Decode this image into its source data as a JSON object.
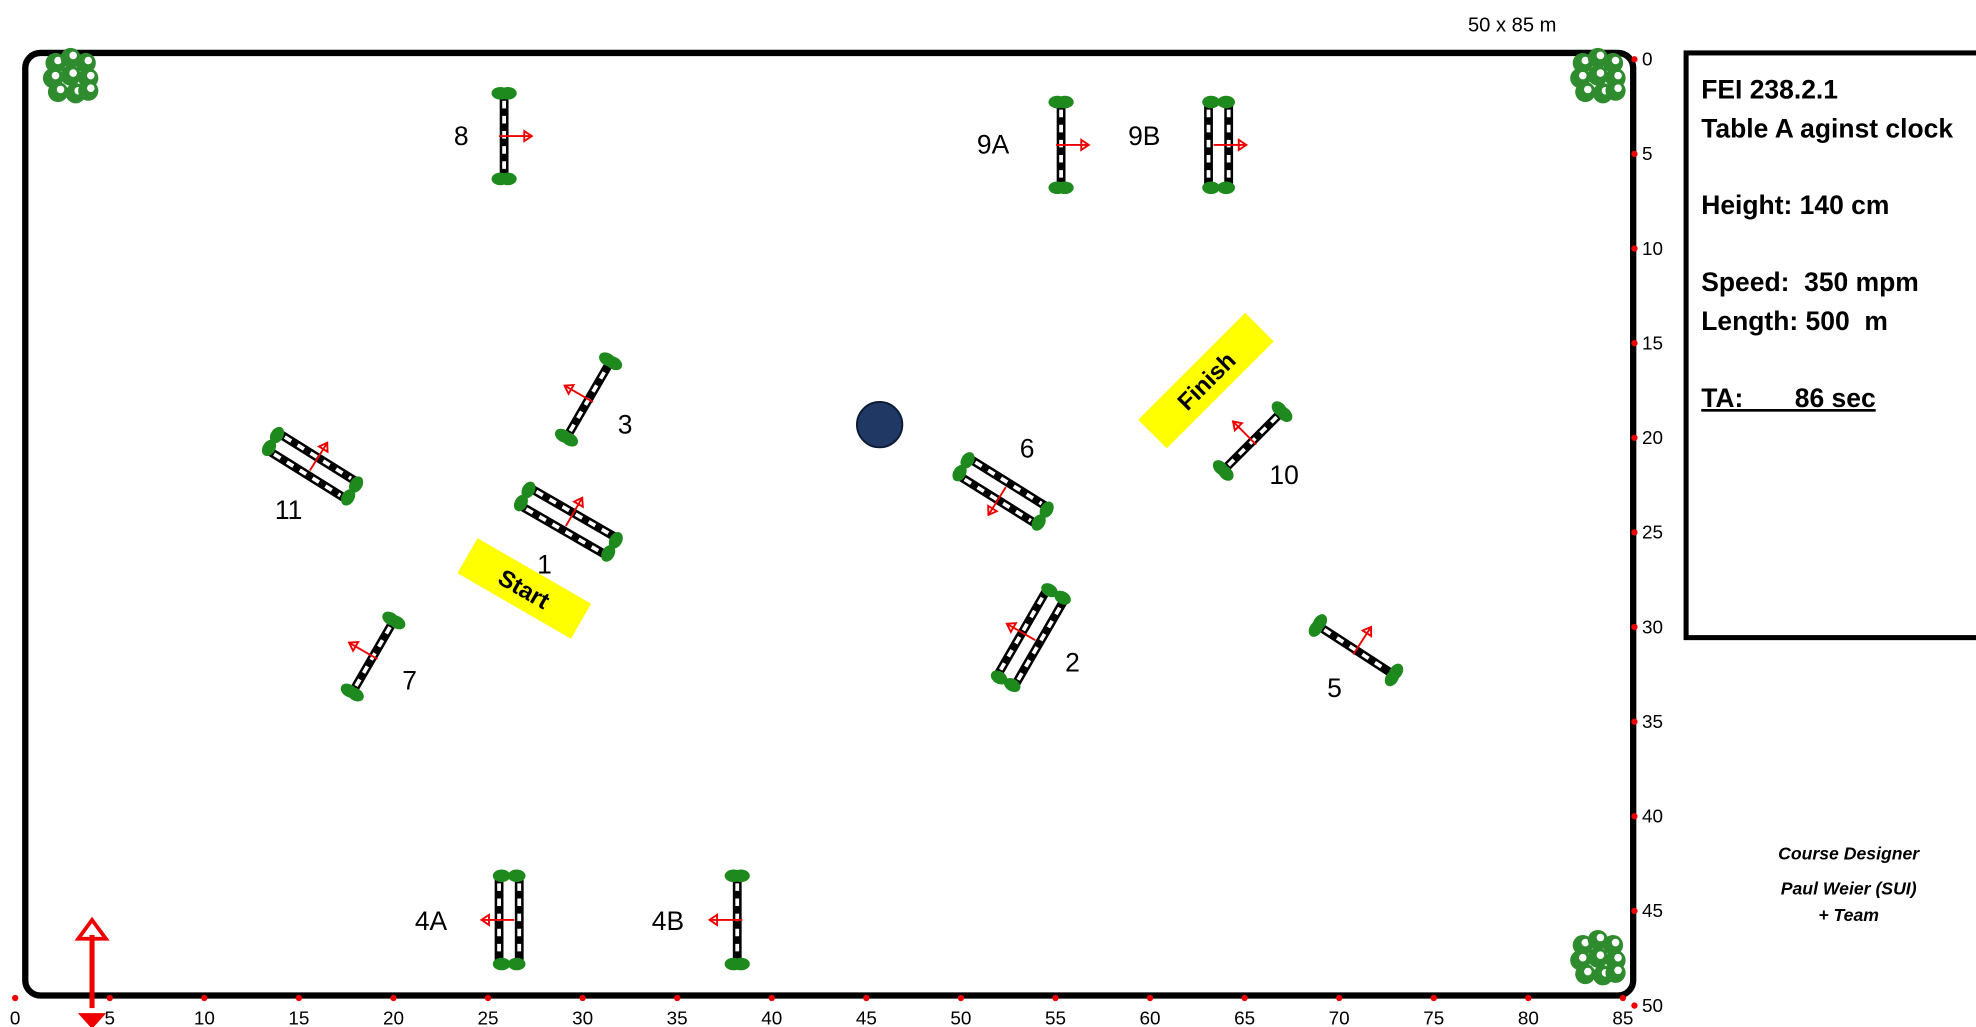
{
  "scale_label": "50 x 85 m",
  "x_scale": [
    0,
    5,
    10,
    15,
    20,
    25,
    30,
    35,
    40,
    45,
    50,
    55,
    60,
    65,
    70,
    75,
    80,
    85
  ],
  "y_scale": [
    0,
    5,
    10,
    15,
    20,
    25,
    30,
    35,
    40,
    45,
    50
  ],
  "info": {
    "lines": [
      "FEI 238.2.1",
      "Table A aginst clock",
      "Height: 140 cm",
      "Speed:  350 mpm",
      "Length: 500  m",
      "TA:       86 sec"
    ]
  },
  "designer": {
    "title": "Course Designer",
    "name": "Paul Weier (SUI)",
    "team": "+ Team"
  },
  "obstacles": [
    "1",
    "2",
    "3",
    "4A",
    "4B",
    "5",
    "6",
    "7",
    "8",
    "9A",
    "9B",
    "10",
    "11"
  ],
  "start": "Start",
  "finish": "Finish"
}
